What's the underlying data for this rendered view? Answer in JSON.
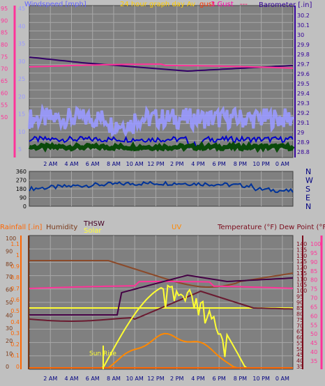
{
  "colors": {
    "background": "#c0c0c0",
    "plot_bg": "#808080",
    "grid": "#a8a8a8",
    "wind_axis": "#ff3399",
    "baro_axis": "#330099",
    "rain": "#ff6600",
    "humidity": "#7a3a1a",
    "thsw": "#440022",
    "solar": "#ffff33",
    "uv": "#ff8800",
    "temperature": "#7a0a1a",
    "dewpoint": "#ff3399"
  },
  "top": {
    "title": "24 hour graph day",
    "windspeed_label": "Windspeed [mph]",
    "barometer_label": "Barometer [.in]",
    "overlay_a": "Av",
    "overlay_b": "gust",
    "overlay_c": "3 Gust",
    "overlay_d": "---",
    "wind_ticks": [
      "45",
      "40",
      "35",
      "30",
      "25",
      "20",
      "15",
      "10",
      "5"
    ],
    "wind_ticks_pink": [
      "95",
      "90",
      "85",
      "80",
      "75",
      "70",
      "65",
      "60",
      "55",
      "50"
    ],
    "baro_ticks": [
      "30.2",
      "30.1",
      "30",
      "29.9",
      "29.8",
      "29.7",
      "29.6",
      "29.5",
      "29.4",
      "29.3",
      "29.2",
      "29.1",
      "29",
      "28.9",
      "28.8"
    ]
  },
  "wind_dir": {
    "ticks": [
      "360",
      "270",
      "180",
      "90",
      "0"
    ],
    "compass": [
      "N",
      "W",
      "S",
      "E",
      "N"
    ]
  },
  "bottom": {
    "rainfall_label": "Rainfall [.in]",
    "humidity_label": "Humidity",
    "thsw_label": "THSW",
    "solar_label": "Solar",
    "uv_label": "UV",
    "temp_label": "Temperature (°F) Dew Point (°F)",
    "sunrise_label": "Sun Rise",
    "rain_ticks": [
      "1.1",
      "1",
      "0.9",
      "0.8",
      "0.7",
      "0.6",
      "0.5",
      "0.4",
      "0.3",
      "0.2",
      "0.1",
      "0"
    ],
    "humidity_ticks": [
      "100",
      "90",
      "80",
      "70",
      "60",
      "50",
      "40",
      "30",
      "20",
      "10",
      "0"
    ],
    "temp_ticks": [
      "140",
      "135",
      "130",
      "125",
      "120",
      "115",
      "110",
      "105",
      "100",
      "95",
      "90",
      "85",
      "80",
      "75",
      "70",
      "65",
      "60",
      "55",
      "50",
      "45",
      "40",
      "35"
    ],
    "dew_ticks": [
      "100",
      "95",
      "90",
      "85",
      "80",
      "75",
      "70",
      "65",
      "60",
      "55",
      "50",
      "45",
      "40",
      "35"
    ]
  },
  "x_ticks": [
    "2 AM",
    "4 AM",
    "6 AM",
    "8 AM",
    "10 AM",
    "12 PM",
    "2 PM",
    "4 PM",
    "6 PM",
    "8 PM",
    "10 PM",
    "0 AM"
  ]
}
